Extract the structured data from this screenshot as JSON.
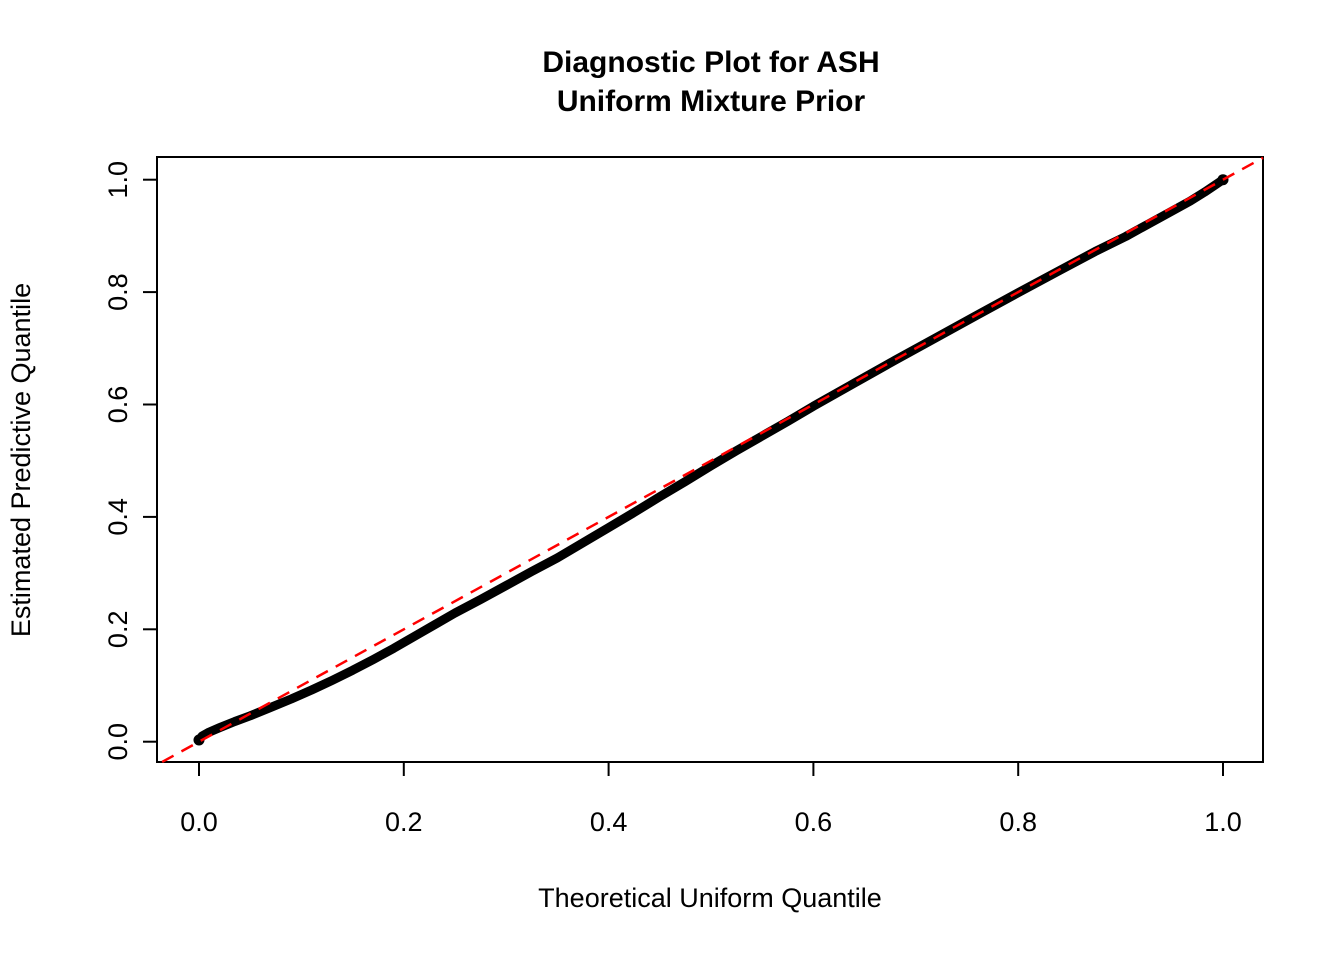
{
  "chart_data": {
    "type": "scatter",
    "subtype": "qq-plot",
    "title_lines": [
      "Diagnostic Plot for ASH",
      "Uniform Mixture Prior"
    ],
    "xlabel": "Theoretical Uniform Quantile",
    "ylabel": "Estimated Predictive Quantile",
    "xlim": [
      -0.04,
      1.04
    ],
    "ylim": [
      -0.04,
      1.04
    ],
    "x_ticks": [
      0.0,
      0.2,
      0.4,
      0.6,
      0.8,
      1.0
    ],
    "y_ticks": [
      0.0,
      0.2,
      0.4,
      0.6,
      0.8,
      1.0
    ],
    "x_tick_labels": [
      "0.0",
      "0.2",
      "0.4",
      "0.6",
      "0.8",
      "1.0"
    ],
    "y_tick_labels": [
      "0.0",
      "0.2",
      "0.4",
      "0.6",
      "0.8",
      "1.0"
    ],
    "grid": false,
    "legend": false,
    "point_color": "#000000",
    "background_color": "#ffffff",
    "axis_color": "#000000",
    "reference_line": {
      "name": "identity-line-y-equals-x",
      "intercept": 0,
      "slope": 1,
      "color": "#FF0000",
      "style": "dashed"
    },
    "series": [
      {
        "name": "estimated-predictive-quantiles",
        "color": "#000000",
        "points": [
          [
            0.0,
            0.003
          ],
          [
            0.003,
            0.01
          ],
          [
            0.01,
            0.017
          ],
          [
            0.02,
            0.025
          ],
          [
            0.035,
            0.036
          ],
          [
            0.05,
            0.046
          ],
          [
            0.07,
            0.061
          ],
          [
            0.09,
            0.076
          ],
          [
            0.11,
            0.092
          ],
          [
            0.13,
            0.109
          ],
          [
            0.15,
            0.127
          ],
          [
            0.17,
            0.146
          ],
          [
            0.19,
            0.166
          ],
          [
            0.21,
            0.187
          ],
          [
            0.23,
            0.208
          ],
          [
            0.25,
            0.229
          ],
          [
            0.275,
            0.253
          ],
          [
            0.3,
            0.278
          ],
          [
            0.325,
            0.303
          ],
          [
            0.35,
            0.327
          ],
          [
            0.375,
            0.354
          ],
          [
            0.4,
            0.381
          ],
          [
            0.425,
            0.408
          ],
          [
            0.45,
            0.436
          ],
          [
            0.475,
            0.463
          ],
          [
            0.5,
            0.491
          ],
          [
            0.525,
            0.518
          ],
          [
            0.55,
            0.544
          ],
          [
            0.575,
            0.57
          ],
          [
            0.6,
            0.597
          ],
          [
            0.64,
            0.638
          ],
          [
            0.68,
            0.679
          ],
          [
            0.72,
            0.719
          ],
          [
            0.76,
            0.759
          ],
          [
            0.8,
            0.799
          ],
          [
            0.84,
            0.838
          ],
          [
            0.875,
            0.872
          ],
          [
            0.905,
            0.899
          ],
          [
            0.93,
            0.924
          ],
          [
            0.95,
            0.944
          ],
          [
            0.968,
            0.962
          ],
          [
            0.982,
            0.978
          ],
          [
            0.992,
            0.99
          ],
          [
            1.0,
            1.0
          ]
        ]
      }
    ]
  }
}
